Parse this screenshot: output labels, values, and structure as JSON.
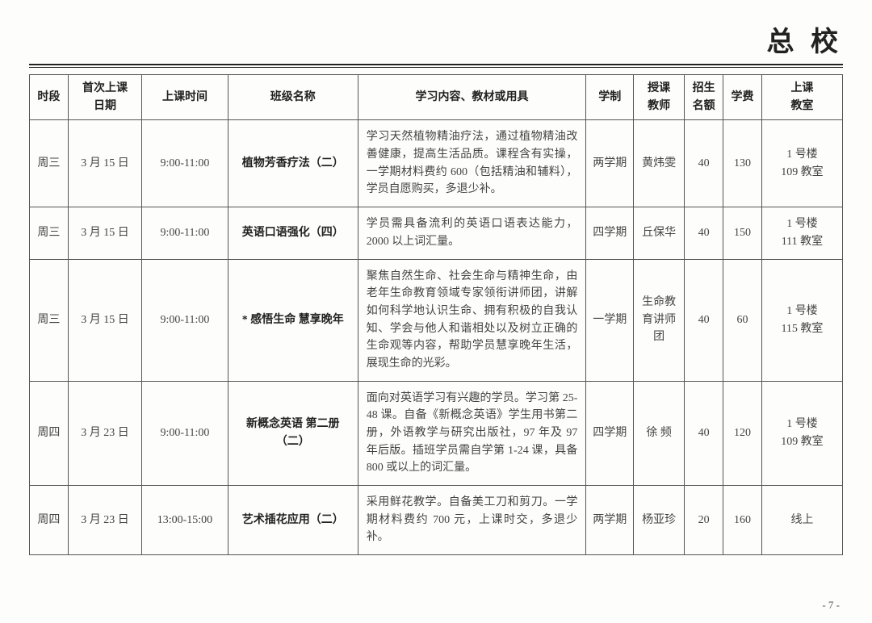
{
  "page": {
    "title": "总 校",
    "number": "- 7 -"
  },
  "table": {
    "headers": {
      "period": "时段",
      "first_date": "首次上课\n日期",
      "class_time": "上课时间",
      "class_name": "班级名称",
      "content": "学习内容、教材或用具",
      "term": "学制",
      "teacher": "授课\n教师",
      "quota": "招生\n名额",
      "fee": "学费",
      "room": "上课\n教室"
    },
    "rows": [
      {
        "period": "周三",
        "date": "3 月 15 日",
        "time": "9:00-11:00",
        "name": "植物芳香疗法（二）",
        "desc": "学习天然植物精油疗法，通过植物精油改善健康，提高生活品质。课程含有实操，一学期材料费约 600（包括精油和辅料），学员自愿购买，多退少补。",
        "term": "两学期",
        "teacher": "黄炜雯",
        "quota": "40",
        "fee": "130",
        "room": "1 号楼\n109 教室"
      },
      {
        "period": "周三",
        "date": "3 月 15 日",
        "time": "9:00-11:00",
        "name": "英语口语强化（四）",
        "desc": "学员需具备流利的英语口语表达能力，2000 以上词汇量。",
        "term": "四学期",
        "teacher": "丘保华",
        "quota": "40",
        "fee": "150",
        "room": "1 号楼\n111 教室"
      },
      {
        "period": "周三",
        "date": "3 月 15 日",
        "time": "9:00-11:00",
        "name": "* 感悟生命 慧享晚年",
        "desc": "聚焦自然生命、社会生命与精神生命，由老年生命教育领域专家领衔讲师团，讲解如何科学地认识生命、拥有积极的自我认知、学会与他人和谐相处以及树立正确的生命观等内容，帮助学员慧享晚年生活，展现生命的光彩。",
        "term": "一学期",
        "teacher": "生命教育讲师团",
        "quota": "40",
        "fee": "60",
        "room": "1 号楼\n115 教室"
      },
      {
        "period": "周四",
        "date": "3 月 23 日",
        "time": "9:00-11:00",
        "name": "新概念英语 第二册（二）",
        "desc": "面向对英语学习有兴趣的学员。学习第 25-48 课。自备《新概念英语》学生用书第二册，外语教学与研究出版社，97 年及 97 年后版。插班学员需自学第 1-24 课，具备 800 或以上的词汇量。",
        "term": "四学期",
        "teacher": "徐 频",
        "quota": "40",
        "fee": "120",
        "room": "1 号楼\n109 教室"
      },
      {
        "period": "周四",
        "date": "3 月 23 日",
        "time": "13:00-15:00",
        "name": "艺术插花应用（二）",
        "desc": "采用鲜花教学。自备美工刀和剪刀。一学期材料费约 700 元，上课时交，多退少补。",
        "term": "两学期",
        "teacher": "杨亚珍",
        "quota": "20",
        "fee": "160",
        "room": "线上"
      }
    ]
  }
}
